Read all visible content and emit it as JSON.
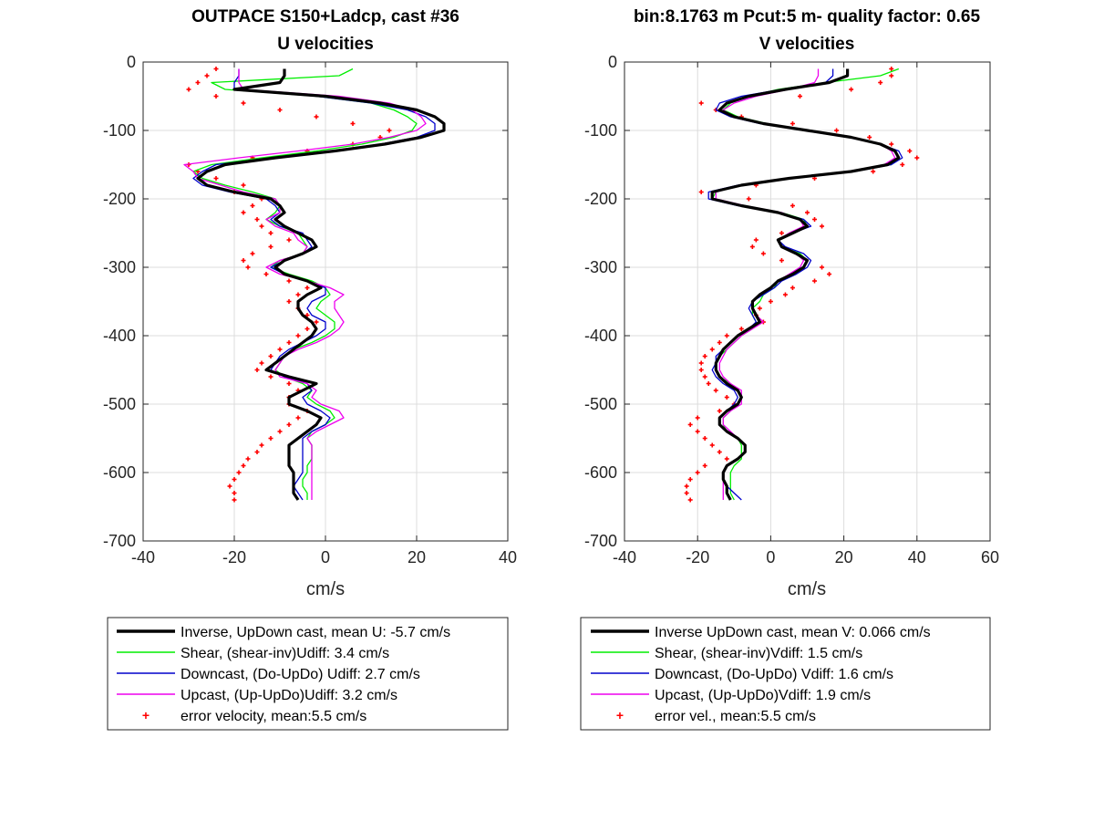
{
  "figure": {
    "left_title_line1": "OUTPACE S150+Ladcp, cast #36",
    "left_title_line2": "U velocities",
    "right_title_line1": "bin:8.1763 m  Pcut:5 m- quality factor:  0.65",
    "right_title_line2": "V velocities"
  },
  "colors": {
    "inverse": "#000000",
    "shear": "#00ee00",
    "downcast": "#0000cc",
    "upcast": "#ee00ee",
    "error": "#ff0000",
    "grid": "#dcdcdc",
    "axis": "#262626"
  },
  "chart_data": [
    {
      "type": "line",
      "title": "OUTPACE S150+Ladcp, cast #36",
      "subtitle": "U velocities",
      "xlabel": "cm/s",
      "ylabel": "",
      "xlim": [
        -40,
        40
      ],
      "ylim": [
        -700,
        0
      ],
      "xticks": [
        "-40",
        "-20",
        "0",
        "20",
        "40"
      ],
      "yticks": [
        "0",
        "-100",
        "-200",
        "-300",
        "-400",
        "-500",
        "-600",
        "-700"
      ],
      "grid": true,
      "legend_position": "below",
      "depth": [
        -10,
        -20,
        -30,
        -40,
        -50,
        -60,
        -70,
        -80,
        -90,
        -100,
        -110,
        -120,
        -130,
        -140,
        -150,
        -160,
        -170,
        -180,
        -190,
        -200,
        -210,
        -220,
        -230,
        -240,
        -250,
        -260,
        -270,
        -280,
        -290,
        -300,
        -310,
        -320,
        -330,
        -340,
        -350,
        -360,
        -370,
        -380,
        -390,
        -400,
        -410,
        -420,
        -430,
        -440,
        -450,
        -460,
        -470,
        -480,
        -490,
        -500,
        -510,
        -520,
        -530,
        -540,
        -550,
        -560,
        -570,
        -580,
        -590,
        -600,
        -610,
        -620,
        -630,
        -640
      ],
      "series": [
        {
          "name": "Inverse, UpDown cast, mean U:  -5.7 cm/s",
          "values": [
            -9,
            -9,
            -10,
            -20,
            0,
            12,
            20,
            24,
            26,
            26,
            21,
            13,
            2,
            -11,
            -22,
            -26,
            -28,
            -26,
            -20,
            -12,
            -10,
            -9,
            -11,
            -9,
            -6,
            -3,
            -2,
            -5,
            -9,
            -11,
            -9,
            -4,
            -1,
            -4,
            -6,
            -6,
            -5,
            -3,
            -2,
            -3,
            -5,
            -7,
            -9,
            -11,
            -13,
            -8,
            -2,
            -5,
            -8,
            -8,
            -4,
            -1,
            -2,
            -4,
            -6,
            -8,
            -8,
            -8,
            -8,
            -7,
            -7,
            -7,
            -7,
            -6
          ]
        },
        {
          "name": "Shear, (shear-inv)Udiff:  3.4 cm/s",
          "values": [
            6,
            3,
            -25,
            -22,
            -2,
            10,
            15,
            18,
            20,
            19,
            15,
            8,
            -2,
            -14,
            -25,
            -29,
            -27,
            -22,
            -16,
            -11,
            -10,
            -11,
            -13,
            -10,
            -6,
            -5,
            -4,
            -5,
            -10,
            -12,
            -8,
            -3,
            0,
            1,
            -1,
            -2,
            0,
            2,
            2,
            0,
            -3,
            -7,
            -9,
            -10,
            -11,
            -9,
            -5,
            -3,
            -4,
            -2,
            1,
            2,
            0,
            -3,
            -4,
            -3,
            -3,
            -3,
            -4,
            -4,
            -5,
            -5,
            -4,
            -4
          ]
        },
        {
          "name": "Downcast, (Do-UpDo) Udiff:  2.7 cm/s",
          "values": [
            -19,
            -19,
            -20,
            -20,
            -2,
            10,
            18,
            22,
            24,
            24,
            20,
            12,
            1,
            -12,
            -24,
            -27,
            -29,
            -27,
            -21,
            -13,
            -11,
            -10,
            -12,
            -10,
            -5,
            -4,
            -3,
            -5,
            -9,
            -12,
            -9,
            -4,
            0,
            0,
            -3,
            -4,
            -3,
            0,
            0,
            -2,
            -5,
            -8,
            -10,
            -11,
            -12,
            -9,
            -4,
            -3,
            -5,
            -4,
            -1,
            1,
            0,
            -3,
            -5,
            -5,
            -5,
            -5,
            -5,
            -5,
            -6,
            -7,
            -6,
            -5
          ]
        },
        {
          "name": "Upcast, (Up-UpDo)Udiff:  3.2 cm/s",
          "values": [
            -19,
            -19,
            -19,
            -18,
            3,
            14,
            19,
            21,
            22,
            20,
            14,
            6,
            -6,
            -19,
            -31,
            -29,
            -28,
            -23,
            -18,
            -11,
            -10,
            -10,
            -13,
            -11,
            -7,
            -6,
            -4,
            -5,
            -10,
            -13,
            -10,
            -4,
            1,
            4,
            2,
            2,
            3,
            4,
            3,
            1,
            -2,
            -6,
            -9,
            -10,
            -11,
            -10,
            -4,
            -2,
            -3,
            -1,
            3,
            4,
            1,
            -2,
            -4,
            -3,
            -3,
            -3,
            -3,
            -3,
            -3,
            -3,
            -3,
            -3
          ]
        },
        {
          "name": "error velocity, mean:5.5 cm/s",
          "values": [
            -24,
            -26,
            -28,
            -30,
            -24,
            -18,
            -10,
            -2,
            6,
            14,
            12,
            6,
            -4,
            -16,
            -30,
            -28,
            -24,
            -18,
            -20,
            -14,
            -16,
            -18,
            -15,
            -14,
            -12,
            -8,
            -12,
            -16,
            -18,
            -17,
            -13,
            -8,
            -4,
            -6,
            -8,
            -6,
            -4,
            -2,
            -4,
            -6,
            -8,
            -10,
            -12,
            -14,
            -15,
            -12,
            -8,
            -6,
            -8,
            -8,
            -4,
            -6,
            -8,
            -10,
            -12,
            -14,
            -15,
            -17,
            -18,
            -19,
            -20,
            -21,
            -20,
            -20
          ]
        }
      ]
    },
    {
      "type": "line",
      "title": "bin:8.1763 m  Pcut:5 m- quality factor:  0.65",
      "subtitle": "V velocities",
      "xlabel": "cm/s",
      "ylabel": "",
      "xlim": [
        -40,
        60
      ],
      "ylim": [
        -700,
        0
      ],
      "xticks": [
        "-40",
        "-20",
        "0",
        "20",
        "40",
        "60"
      ],
      "yticks": [
        "0",
        "-100",
        "-200",
        "-300",
        "-400",
        "-500",
        "-600",
        "-700"
      ],
      "grid": true,
      "legend_position": "below",
      "depth": [
        -10,
        -20,
        -30,
        -40,
        -50,
        -60,
        -70,
        -80,
        -90,
        -100,
        -110,
        -120,
        -130,
        -140,
        -150,
        -160,
        -170,
        -180,
        -190,
        -200,
        -210,
        -220,
        -230,
        -240,
        -250,
        -260,
        -270,
        -280,
        -290,
        -300,
        -310,
        -320,
        -330,
        -340,
        -350,
        -360,
        -370,
        -380,
        -390,
        -400,
        -410,
        -420,
        -430,
        -440,
        -450,
        -460,
        -470,
        -480,
        -490,
        -500,
        -510,
        -520,
        -530,
        -540,
        -550,
        -560,
        -570,
        -580,
        -590,
        -600,
        -610,
        -620,
        -630,
        -640
      ],
      "series": [
        {
          "name": "Inverse UpDown cast, mean V:  0.066 cm/s",
          "values": [
            21,
            21,
            16,
            4,
            -6,
            -12,
            -14,
            -10,
            -2,
            10,
            22,
            30,
            34,
            35,
            32,
            22,
            5,
            -8,
            -16,
            -16,
            -8,
            2,
            8,
            10,
            6,
            2,
            3,
            7,
            10,
            9,
            6,
            2,
            0,
            -3,
            -5,
            -5,
            -4,
            -3,
            -6,
            -9,
            -11,
            -13,
            -14,
            -15,
            -15,
            -14,
            -12,
            -9,
            -8,
            -9,
            -12,
            -14,
            -14,
            -12,
            -9,
            -7,
            -7,
            -9,
            -12,
            -13,
            -13,
            -12,
            -12,
            -11
          ]
        },
        {
          "name": "Shear, (shear-inv)Vdiff:  1.5 cm/s",
          "values": [
            35,
            30,
            15,
            2,
            -6,
            -11,
            -13,
            -9,
            -1,
            11,
            22,
            30,
            34,
            35,
            33,
            22,
            5,
            -8,
            -15,
            -16,
            -8,
            3,
            9,
            10,
            6,
            2,
            3,
            8,
            10,
            9,
            6,
            2,
            1,
            -2,
            -3,
            -5,
            -5,
            -4,
            -5,
            -8,
            -10,
            -12,
            -14,
            -15,
            -15,
            -14,
            -11,
            -9,
            -8,
            -9,
            -11,
            -13,
            -13,
            -12,
            -9,
            -8,
            -8,
            -8,
            -10,
            -11,
            -11,
            -11,
            -11,
            -10
          ]
        },
        {
          "name": "Downcast, (Do-UpDo) Vdiff:  1.6 cm/s",
          "values": [
            17,
            17,
            15,
            3,
            -8,
            -14,
            -15,
            -11,
            -3,
            9,
            21,
            30,
            35,
            36,
            33,
            23,
            6,
            -9,
            -17,
            -17,
            -9,
            2,
            9,
            11,
            6,
            2,
            4,
            9,
            11,
            10,
            7,
            3,
            1,
            -2,
            -5,
            -6,
            -5,
            -4,
            -6,
            -9,
            -11,
            -13,
            -15,
            -15,
            -16,
            -15,
            -13,
            -10,
            -9,
            -10,
            -12,
            -14,
            -14,
            -12,
            -9,
            -7,
            -7,
            -9,
            -12,
            -13,
            -13,
            -12,
            -10,
            -8
          ]
        },
        {
          "name": "Upcast, (Up-UpDo)Vdiff:  1.9 cm/s",
          "values": [
            13,
            13,
            12,
            5,
            -4,
            -10,
            -13,
            -10,
            -2,
            10,
            22,
            30,
            33,
            34,
            31,
            22,
            5,
            -8,
            -15,
            -15,
            -7,
            3,
            8,
            9,
            5,
            2,
            3,
            7,
            9,
            8,
            5,
            2,
            0,
            -3,
            -5,
            -5,
            -4,
            -2,
            -5,
            -8,
            -10,
            -12,
            -13,
            -14,
            -14,
            -13,
            -11,
            -8,
            -8,
            -8,
            -11,
            -13,
            -13,
            -11,
            -9,
            -7,
            -7,
            -9,
            -12,
            -13,
            -13,
            -13,
            -13,
            -13
          ]
        },
        {
          "name": "error vel., mean:5.5 cm/s",
          "values": [
            33,
            33,
            30,
            22,
            8,
            -19,
            -15,
            -8,
            6,
            18,
            27,
            33,
            38,
            40,
            36,
            28,
            12,
            -4,
            -19,
            -6,
            6,
            10,
            12,
            14,
            3,
            -4,
            -5,
            -2,
            3,
            14,
            16,
            12,
            6,
            4,
            0,
            -3,
            -4,
            -2,
            -8,
            -12,
            -14,
            -16,
            -18,
            -19,
            -19,
            -18,
            -17,
            -15,
            -12,
            -10,
            -14,
            -20,
            -22,
            -20,
            -18,
            -16,
            -14,
            -12,
            -18,
            -20,
            -22,
            -23,
            -23,
            -22
          ]
        }
      ]
    }
  ]
}
